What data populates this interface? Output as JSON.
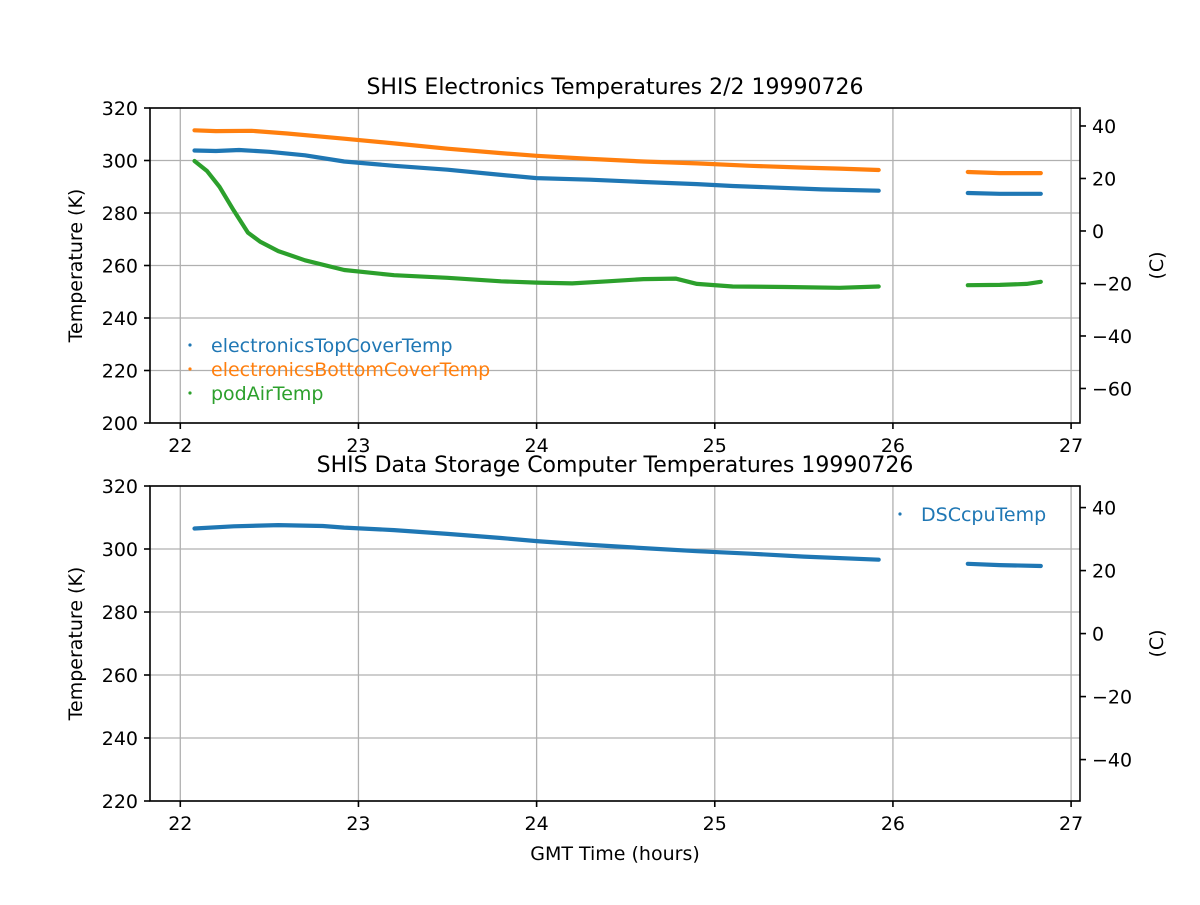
{
  "colors": {
    "blue": "#1f77b4",
    "orange": "#ff7f0e",
    "green": "#2ca02c",
    "grid": "#b0b0b0"
  },
  "chart_data": [
    {
      "type": "scatter",
      "title": "SHIS Electronics Temperatures 2/2 19990726",
      "xlabel": "",
      "ylabel": "Temperature (K)",
      "ylabel_right": "(C)",
      "xlim": [
        21.83,
        27.05
      ],
      "ylim": [
        200,
        320
      ],
      "ylim_right_C": [
        -73.15,
        46.85
      ],
      "xticks": [
        "22",
        "23",
        "24",
        "25",
        "26",
        "27"
      ],
      "yticks": [
        "200",
        "220",
        "240",
        "260",
        "280",
        "300",
        "320"
      ],
      "yticks_right": [
        "−60",
        "−40",
        "−20",
        "0",
        "20",
        "40"
      ],
      "grid": true,
      "legend_position": "lower-left",
      "series": [
        {
          "name": "electronicsTopCoverTemp",
          "color": "#1f77b4",
          "segments": [
            [
              [
                22.08,
                303.8
              ],
              [
                22.2,
                303.6
              ],
              [
                22.33,
                304.0
              ],
              [
                22.5,
                303.3
              ],
              [
                22.7,
                302.0
              ],
              [
                22.92,
                299.6
              ],
              [
                23.2,
                298.0
              ],
              [
                23.5,
                296.5
              ],
              [
                23.8,
                294.5
              ],
              [
                24.0,
                293.3
              ],
              [
                24.3,
                292.7
              ],
              [
                24.6,
                291.8
              ],
              [
                24.9,
                291.0
              ],
              [
                25.1,
                290.3
              ],
              [
                25.3,
                289.8
              ],
              [
                25.6,
                289.0
              ],
              [
                25.92,
                288.5
              ]
            ],
            [
              [
                26.42,
                287.6
              ],
              [
                26.6,
                287.3
              ],
              [
                26.83,
                287.3
              ]
            ]
          ]
        },
        {
          "name": "electronicsBottomCoverTemp",
          "color": "#ff7f0e",
          "segments": [
            [
              [
                22.08,
                311.5
              ],
              [
                22.2,
                311.2
              ],
              [
                22.4,
                311.3
              ],
              [
                22.6,
                310.3
              ],
              [
                22.92,
                308.3
              ],
              [
                23.2,
                306.5
              ],
              [
                23.5,
                304.5
              ],
              [
                23.8,
                302.8
              ],
              [
                24.0,
                301.8
              ],
              [
                24.3,
                300.6
              ],
              [
                24.6,
                299.6
              ],
              [
                24.9,
                298.9
              ],
              [
                25.2,
                298.0
              ],
              [
                25.5,
                297.3
              ],
              [
                25.7,
                296.9
              ],
              [
                25.92,
                296.4
              ]
            ],
            [
              [
                26.42,
                295.6
              ],
              [
                26.6,
                295.2
              ],
              [
                26.83,
                295.2
              ]
            ]
          ]
        },
        {
          "name": "podAirTemp",
          "color": "#2ca02c",
          "segments": [
            [
              [
                22.08,
                299.8
              ],
              [
                22.15,
                296.0
              ],
              [
                22.22,
                290.0
              ],
              [
                22.3,
                281.0
              ],
              [
                22.38,
                272.5
              ],
              [
                22.45,
                269.0
              ],
              [
                22.55,
                265.5
              ],
              [
                22.7,
                262.0
              ],
              [
                22.92,
                258.3
              ],
              [
                23.2,
                256.3
              ],
              [
                23.5,
                255.3
              ],
              [
                23.8,
                254.0
              ],
              [
                24.0,
                253.5
              ],
              [
                24.2,
                253.2
              ],
              [
                24.4,
                254.0
              ],
              [
                24.6,
                254.8
              ],
              [
                24.78,
                255.0
              ],
              [
                24.9,
                253.0
              ],
              [
                25.1,
                252.0
              ],
              [
                25.4,
                251.8
              ],
              [
                25.7,
                251.5
              ],
              [
                25.92,
                252.0
              ]
            ],
            [
              [
                26.42,
                252.5
              ],
              [
                26.6,
                252.6
              ],
              [
                26.75,
                253.0
              ],
              [
                26.83,
                253.8
              ]
            ]
          ]
        }
      ]
    },
    {
      "type": "scatter",
      "title": "SHIS Data Storage Computer Temperatures 19990726",
      "xlabel": "GMT Time (hours)",
      "ylabel": "Temperature (K)",
      "ylabel_right": "(C)",
      "xlim": [
        21.83,
        27.05
      ],
      "ylim": [
        220,
        320
      ],
      "ylim_right_C": [
        -53.15,
        46.85
      ],
      "xticks": [
        "22",
        "23",
        "24",
        "25",
        "26",
        "27"
      ],
      "yticks": [
        "220",
        "240",
        "260",
        "280",
        "300",
        "320"
      ],
      "yticks_right": [
        "−40",
        "−20",
        "0",
        "20",
        "40"
      ],
      "grid": true,
      "legend_position": "upper-right",
      "series": [
        {
          "name": "DSCcpuTemp",
          "color": "#1f77b4",
          "segments": [
            [
              [
                22.08,
                306.5
              ],
              [
                22.3,
                307.2
              ],
              [
                22.55,
                307.6
              ],
              [
                22.8,
                307.3
              ],
              [
                22.92,
                306.8
              ],
              [
                23.2,
                306.0
              ],
              [
                23.5,
                304.8
              ],
              [
                23.8,
                303.5
              ],
              [
                24.0,
                302.5
              ],
              [
                24.3,
                301.3
              ],
              [
                24.6,
                300.3
              ],
              [
                24.9,
                299.3
              ],
              [
                25.2,
                298.5
              ],
              [
                25.5,
                297.6
              ],
              [
                25.92,
                296.6
              ]
            ],
            [
              [
                26.42,
                295.3
              ],
              [
                26.6,
                294.9
              ],
              [
                26.83,
                294.6
              ]
            ]
          ]
        }
      ]
    }
  ]
}
